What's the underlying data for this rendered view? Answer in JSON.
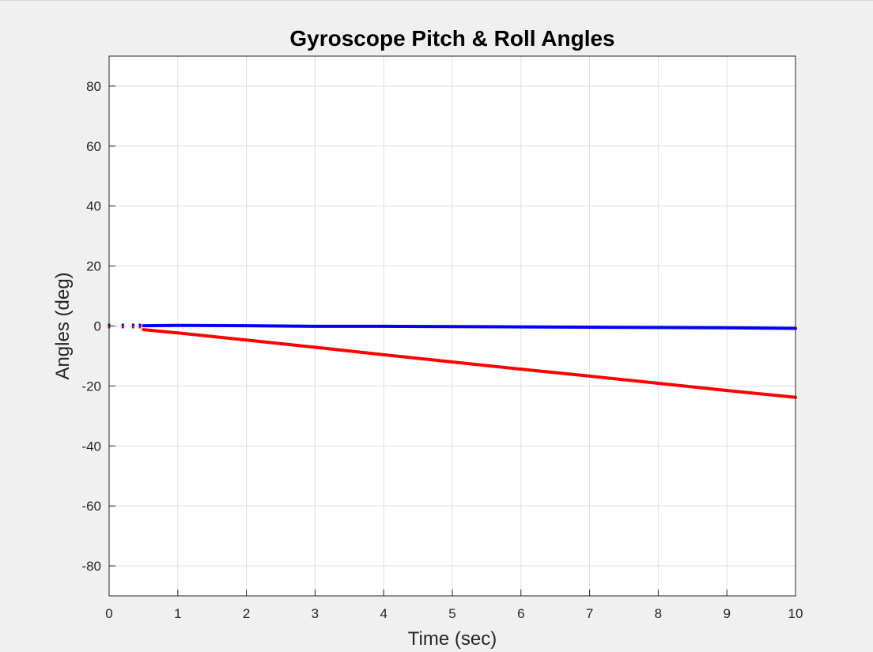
{
  "chart_data": {
    "type": "line",
    "title": "Gyroscope Pitch & Roll Angles",
    "xlabel": "Time (sec)",
    "ylabel": "Angles (deg)",
    "xlim": [
      0,
      10
    ],
    "ylim": [
      -90,
      90
    ],
    "x_ticks": [
      0,
      1,
      2,
      3,
      4,
      5,
      6,
      7,
      8,
      9,
      10
    ],
    "y_ticks": [
      -80,
      -60,
      -40,
      -20,
      0,
      20,
      40,
      60,
      80
    ],
    "grid": true,
    "series": [
      {
        "color": "#0000ff",
        "x": [
          0.5,
          1,
          2,
          3,
          4,
          5,
          6,
          7,
          8,
          9,
          10
        ],
        "y": [
          0.1,
          0.2,
          0.1,
          -0.1,
          -0.1,
          -0.2,
          -0.3,
          -0.4,
          -0.5,
          -0.6,
          -0.8
        ]
      },
      {
        "color": "#ff0000",
        "x": [
          0.5,
          1,
          2,
          3,
          4,
          5,
          6,
          7,
          8,
          9,
          10
        ],
        "y": [
          -1.2,
          -2.3,
          -4.7,
          -7.1,
          -9.6,
          -12.0,
          -14.4,
          -16.7,
          -19.1,
          -21.5,
          -23.8
        ]
      }
    ],
    "early_points": [
      {
        "x": 0.0,
        "y": 0.0
      },
      {
        "x": 0.2,
        "y": 0.0
      },
      {
        "x": 0.35,
        "y": 0.0
      },
      {
        "x": 0.45,
        "y": 0.0
      }
    ]
  }
}
